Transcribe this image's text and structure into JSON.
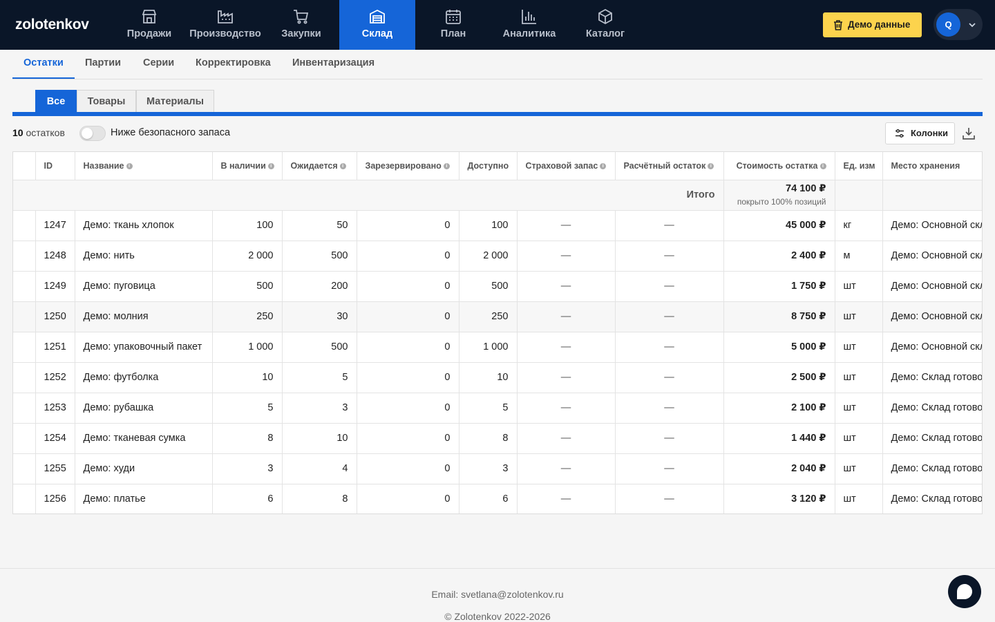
{
  "app": {
    "logo": "zolotenkov"
  },
  "nav": [
    {
      "label": "Продажи",
      "icon": "store-icon"
    },
    {
      "label": "Производство",
      "icon": "factory-icon"
    },
    {
      "label": "Закупки",
      "icon": "cart-icon"
    },
    {
      "label": "Склад",
      "icon": "warehouse-icon",
      "active": true
    },
    {
      "label": "План",
      "icon": "calendar-icon"
    },
    {
      "label": "Аналитика",
      "icon": "bar-chart-icon"
    },
    {
      "label": "Каталог",
      "icon": "box-icon"
    }
  ],
  "header": {
    "demo_button": "Демо данные",
    "avatar_letter": "Q"
  },
  "subtabs": [
    "Остатки",
    "Партии",
    "Серии",
    "Корректировка",
    "Инвентаризация"
  ],
  "filter_tabs": [
    "Все",
    "Товары",
    "Материалы"
  ],
  "toolbar": {
    "count_number": "10",
    "count_label": "остатков",
    "toggle_label": "Ниже безопасного запаса",
    "toggle_on": false,
    "columns_button": "Колонки"
  },
  "table": {
    "columns": [
      "ID",
      "Название",
      "В наличии",
      "Ожидается",
      "Зарезервировано",
      "Доступно",
      "Страховой запас",
      "Расчётный остаток",
      "Стоимость остатка",
      "Ед. изм",
      "Место хранения"
    ],
    "total": {
      "label": "Итого",
      "value": "74 100 ₽",
      "note": "покрыто 100% позиций"
    },
    "rows": [
      [
        "1247",
        "Демо: ткань хлопок",
        "100",
        "50",
        "0",
        "100",
        "—",
        "—",
        "45 000 ₽",
        "кг",
        "Демо: Основной склад"
      ],
      [
        "1248",
        "Демо: нить",
        "2 000",
        "500",
        "0",
        "2 000",
        "—",
        "—",
        "2 400 ₽",
        "м",
        "Демо: Основной склад"
      ],
      [
        "1249",
        "Демо: пуговица",
        "500",
        "200",
        "0",
        "500",
        "—",
        "—",
        "1 750 ₽",
        "шт",
        "Демо: Основной склад"
      ],
      [
        "1250",
        "Демо: молния",
        "250",
        "30",
        "0",
        "250",
        "—",
        "—",
        "8 750 ₽",
        "шт",
        "Демо: Основной склад"
      ],
      [
        "1251",
        "Демо: упаковочный пакет",
        "1 000",
        "500",
        "0",
        "1 000",
        "—",
        "—",
        "5 000 ₽",
        "шт",
        "Демо: Основной склад"
      ],
      [
        "1252",
        "Демо: футболка",
        "10",
        "5",
        "0",
        "10",
        "—",
        "—",
        "2 500 ₽",
        "шт",
        "Демо: Склад готовой продукции"
      ],
      [
        "1253",
        "Демо: рубашка",
        "5",
        "3",
        "0",
        "5",
        "—",
        "—",
        "2 100 ₽",
        "шт",
        "Демо: Склад готовой продукции"
      ],
      [
        "1254",
        "Демо: тканевая сумка",
        "8",
        "10",
        "0",
        "8",
        "—",
        "—",
        "1 440 ₽",
        "шт",
        "Демо: Склад готовой продукции"
      ],
      [
        "1255",
        "Демо: худи",
        "3",
        "4",
        "0",
        "3",
        "—",
        "—",
        "2 040 ₽",
        "шт",
        "Демо: Склад готовой продукции"
      ],
      [
        "1256",
        "Демо: платье",
        "6",
        "8",
        "0",
        "6",
        "—",
        "—",
        "3 120 ₽",
        "шт",
        "Демо: Склад готовой продукции"
      ]
    ]
  },
  "footer": {
    "email": "Email: svetlana@zolotenkov.ru",
    "copyright": "© Zolotenkov 2022-2026"
  },
  "colors": {
    "nav_bg": "#0a1628",
    "accent": "#1565d8",
    "demo_button": "#fcd34d"
  }
}
